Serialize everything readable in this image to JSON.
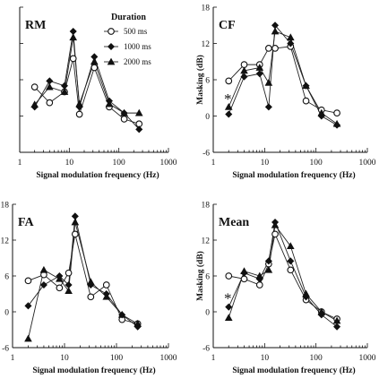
{
  "chart_data": [
    {
      "type": "line",
      "title": "RM",
      "xlabel": "Signal modulation frequency (Hz)",
      "ylabel": "",
      "xscale": "log",
      "xlim": [
        1,
        1000
      ],
      "ylim": [
        -6,
        18
      ],
      "xticks": [
        "1",
        "10",
        "100",
        "1000"
      ],
      "yticks": [],
      "legend": {
        "title": "Duration",
        "position": "top-right",
        "entries": [
          "500 ms",
          "1000 ms",
          "2000 ms"
        ]
      },
      "x": [
        2,
        4,
        8,
        12,
        16,
        32,
        64,
        128,
        256
      ],
      "series": [
        {
          "name": "500 ms",
          "marker": "open-circle",
          "values": [
            4.8,
            2.2,
            4.0,
            9.5,
            0.3,
            8.0,
            1.5,
            -0.5,
            -1.3
          ]
        },
        {
          "name": "1000 ms",
          "marker": "diamond",
          "values": [
            1.5,
            5.8,
            5.0,
            14.0,
            1.5,
            9.8,
            2.5,
            0.5,
            -2.2
          ]
        },
        {
          "name": "2000 ms",
          "marker": "triangle",
          "values": [
            1.9,
            4.8,
            4.0,
            13.0,
            2.0,
            9.0,
            2.0,
            0.5,
            0.5
          ]
        }
      ]
    },
    {
      "type": "line",
      "title": "CF",
      "xlabel": "Signal modulation frequency (Hz)",
      "ylabel": "Masking (dB)",
      "xscale": "log",
      "xlim": [
        1,
        1000
      ],
      "ylim": [
        -6,
        18
      ],
      "xticks": [
        "1",
        "10",
        "100",
        "1000"
      ],
      "yticks": [
        "-6",
        "0",
        "6",
        "12",
        "18"
      ],
      "annotation": "*",
      "x": [
        2,
        4,
        8,
        12,
        16,
        32,
        64,
        128,
        256
      ],
      "series": [
        {
          "name": "500 ms",
          "marker": "open-circle",
          "values": [
            5.8,
            8.5,
            8.5,
            11.2,
            11.2,
            11.5,
            2.5,
            1.0,
            0.5
          ]
        },
        {
          "name": "1000 ms",
          "marker": "diamond",
          "values": [
            0.3,
            6.5,
            7.0,
            1.5,
            15.0,
            12.0,
            5.0,
            0.0,
            -1.5
          ]
        },
        {
          "name": "2000 ms",
          "marker": "triangle",
          "values": [
            1.5,
            7.5,
            8.0,
            5.5,
            14.0,
            13.0,
            5.0,
            0.5,
            -1.3
          ]
        }
      ]
    },
    {
      "type": "line",
      "title": "FA",
      "xlabel": "Signal modulation frequency (Hz)",
      "ylabel": "",
      "xscale": "log",
      "xlim": [
        1,
        1000
      ],
      "ylim": [
        -6,
        18
      ],
      "xticks": [
        "1",
        "10",
        "100",
        "1000"
      ],
      "yticks": [
        "-6",
        "0",
        "6",
        "12",
        "18"
      ],
      "x": [
        2,
        4,
        8,
        12,
        16,
        32,
        64,
        128,
        256
      ],
      "series": [
        {
          "name": "500 ms",
          "marker": "open-circle",
          "values": [
            5.2,
            6.2,
            4.0,
            6.5,
            13.0,
            2.5,
            4.5,
            -1.3,
            -2.0
          ]
        },
        {
          "name": "1000 ms",
          "marker": "diamond",
          "values": [
            1.0,
            4.5,
            6.0,
            4.5,
            16.0,
            4.5,
            3.0,
            -0.5,
            -2.5
          ]
        },
        {
          "name": "2000 ms",
          "marker": "triangle",
          "values": [
            -4.5,
            7.0,
            5.5,
            3.5,
            15.0,
            5.0,
            2.5,
            -0.5,
            -2.0
          ]
        }
      ]
    },
    {
      "type": "line",
      "title": "Mean",
      "xlabel": "Signal modulation frequency (Hz)",
      "ylabel": "Masking (dB)",
      "xscale": "log",
      "xlim": [
        1,
        1000
      ],
      "ylim": [
        -6,
        18
      ],
      "xticks": [
        "1",
        "10",
        "100",
        "1000"
      ],
      "yticks": [
        "-6",
        "0",
        "6",
        "12",
        "18"
      ],
      "annotation": "*",
      "x": [
        2,
        4,
        8,
        12,
        16,
        32,
        64,
        128,
        256
      ],
      "series": [
        {
          "name": "500 ms",
          "marker": "open-circle",
          "values": [
            6.0,
            5.5,
            4.5,
            8.0,
            13.0,
            7.0,
            2.0,
            0.0,
            -1.2
          ]
        },
        {
          "name": "1000 ms",
          "marker": "diamond",
          "values": [
            0.8,
            6.5,
            5.5,
            8.5,
            15.0,
            8.5,
            2.5,
            -0.5,
            -2.5
          ]
        },
        {
          "name": "2000 ms",
          "marker": "triangle",
          "values": [
            -1.0,
            6.8,
            6.0,
            7.0,
            14.5,
            11.0,
            3.0,
            0.0,
            -1.5
          ]
        }
      ]
    }
  ]
}
